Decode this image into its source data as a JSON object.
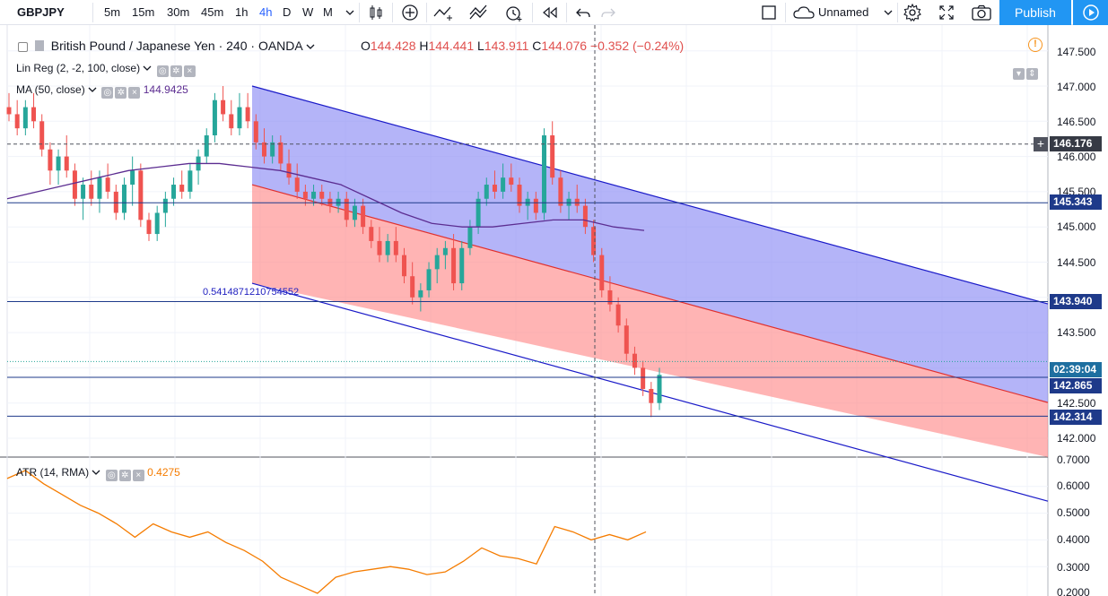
{
  "toolbar": {
    "symbol": "GBPJPY",
    "intervals": [
      "5m",
      "15m",
      "30m",
      "45m",
      "1h",
      "4h",
      "D",
      "W",
      "M"
    ],
    "active_interval": "4h",
    "layout_name": "Unnamed",
    "publish_label": "Publish",
    "icons": [
      "candles-icon",
      "add-icon",
      "indicators-icon",
      "templates-icon",
      "alert-icon",
      "replay-icon",
      "undo-icon",
      "redo-icon",
      "square-icon",
      "cloud-icon",
      "settings-icon",
      "fullscreen-icon",
      "camera-icon",
      "play-icon"
    ]
  },
  "main_legend": {
    "title": "British Pound / Japanese Yen · 240 · OANDA",
    "o_label": "O",
    "o_value": "144.428",
    "h_label": "H",
    "h_value": "144.441",
    "l_label": "L",
    "l_value": "143.911",
    "c_label": "C",
    "c_value": "144.076",
    "change": "−0.352 (−0.24%)"
  },
  "indicators": {
    "linreg": "Lin Reg (2, -2, 100, close)",
    "ma_label": "MA (50, close)",
    "ma_value": "144.9425",
    "atr_label": "ATR (14, RMA)",
    "atr_value": "0.4275"
  },
  "annotation": "0.5414871210754552",
  "price_axis": {
    "labels": [
      "147.500",
      "147.000",
      "146.500",
      "146.000",
      "145.500",
      "145.000",
      "144.500",
      "143.500",
      "142.500",
      "142.000",
      "0.7000"
    ],
    "tags": {
      "crosshair": "146.176",
      "upper_line": "145.343",
      "mid_line": "143.940",
      "countdown": "02:39:04",
      "price": "142.865",
      "low_line": "142.314"
    }
  },
  "atr_axis": {
    "labels": [
      "0.6000",
      "0.5000",
      "0.4000",
      "0.3000",
      "0.2000"
    ]
  },
  "colors": {
    "up": "#26a69a",
    "down": "#ef5350",
    "channel_upper": "#5c5cf5",
    "channel_lower": "#ff6b6b",
    "ma": "#5c2d91",
    "atr": "#f57c00",
    "accent": "#2196f3"
  },
  "chart_data": {
    "type": "candlestick",
    "title": "British Pound / Japanese Yen · 240 · OANDA",
    "ylim": [
      141.7,
      147.8
    ],
    "candles_ohlc": [
      [
        146.7,
        146.9,
        146.5,
        146.6
      ],
      [
        146.6,
        146.8,
        146.3,
        146.4
      ],
      [
        146.4,
        146.8,
        146.3,
        146.7
      ],
      [
        146.7,
        146.9,
        146.4,
        146.5
      ],
      [
        146.5,
        146.6,
        146.0,
        146.1
      ],
      [
        146.1,
        146.2,
        145.6,
        145.8
      ],
      [
        145.8,
        146.1,
        145.6,
        146.0
      ],
      [
        146.0,
        146.3,
        145.7,
        145.8
      ],
      [
        145.8,
        145.9,
        145.3,
        145.4
      ],
      [
        145.4,
        145.7,
        145.1,
        145.6
      ],
      [
        145.6,
        145.8,
        145.3,
        145.4
      ],
      [
        145.4,
        145.8,
        145.2,
        145.7
      ],
      [
        145.7,
        145.9,
        145.4,
        145.5
      ],
      [
        145.5,
        145.6,
        145.1,
        145.2
      ],
      [
        145.2,
        145.7,
        145.1,
        145.6
      ],
      [
        145.6,
        146.0,
        145.3,
        145.8
      ],
      [
        145.8,
        145.9,
        145.0,
        145.1
      ],
      [
        145.1,
        145.2,
        144.8,
        144.9
      ],
      [
        144.9,
        145.3,
        144.8,
        145.2
      ],
      [
        145.2,
        145.5,
        145.0,
        145.4
      ],
      [
        145.4,
        145.7,
        145.3,
        145.6
      ],
      [
        145.6,
        145.8,
        145.4,
        145.5
      ],
      [
        145.5,
        145.9,
        145.4,
        145.8
      ],
      [
        145.8,
        146.1,
        145.6,
        146.0
      ],
      [
        146.0,
        146.4,
        145.9,
        146.3
      ],
      [
        146.3,
        146.9,
        146.2,
        146.8
      ],
      [
        146.8,
        147.0,
        146.5,
        146.6
      ],
      [
        146.6,
        146.8,
        146.3,
        146.4
      ],
      [
        146.4,
        146.9,
        146.3,
        146.7
      ],
      [
        146.7,
        146.9,
        146.4,
        146.5
      ],
      [
        146.5,
        146.6,
        146.1,
        146.2
      ],
      [
        146.2,
        146.4,
        145.9,
        146.0
      ],
      [
        146.0,
        146.3,
        145.9,
        146.2
      ],
      [
        146.2,
        146.3,
        145.8,
        145.9
      ],
      [
        145.9,
        146.1,
        145.6,
        145.7
      ],
      [
        145.7,
        145.9,
        145.4,
        145.5
      ],
      [
        145.5,
        145.6,
        145.3,
        145.4
      ],
      [
        145.4,
        145.6,
        145.3,
        145.5
      ],
      [
        145.5,
        145.6,
        145.3,
        145.4
      ],
      [
        145.4,
        145.5,
        145.2,
        145.3
      ],
      [
        145.3,
        145.5,
        145.2,
        145.4
      ],
      [
        145.4,
        145.5,
        145.0,
        145.1
      ],
      [
        145.1,
        145.4,
        145.0,
        145.3
      ],
      [
        145.3,
        145.4,
        144.9,
        145.0
      ],
      [
        145.0,
        145.1,
        144.7,
        144.8
      ],
      [
        144.8,
        145.0,
        144.5,
        144.6
      ],
      [
        144.6,
        144.9,
        144.5,
        144.8
      ],
      [
        144.8,
        145.0,
        144.5,
        144.6
      ],
      [
        144.6,
        144.7,
        144.2,
        144.3
      ],
      [
        144.3,
        144.5,
        143.9,
        144.0
      ],
      [
        144.0,
        144.2,
        143.8,
        144.1
      ],
      [
        144.1,
        144.5,
        144.0,
        144.4
      ],
      [
        144.4,
        144.7,
        144.2,
        144.6
      ],
      [
        144.6,
        144.8,
        144.4,
        144.7
      ],
      [
        144.7,
        144.9,
        144.1,
        144.2
      ],
      [
        144.2,
        144.8,
        144.1,
        144.7
      ],
      [
        144.7,
        145.1,
        144.6,
        145.0
      ],
      [
        145.0,
        145.5,
        144.9,
        145.4
      ],
      [
        145.4,
        145.7,
        145.3,
        145.6
      ],
      [
        145.6,
        145.8,
        145.4,
        145.5
      ],
      [
        145.5,
        145.9,
        145.4,
        145.7
      ],
      [
        145.7,
        145.9,
        145.5,
        145.6
      ],
      [
        145.6,
        145.7,
        145.2,
        145.3
      ],
      [
        145.3,
        145.5,
        145.1,
        145.4
      ],
      [
        145.4,
        145.5,
        145.1,
        145.2
      ],
      [
        145.2,
        146.4,
        145.1,
        146.3
      ],
      [
        146.3,
        146.5,
        145.6,
        145.7
      ],
      [
        145.7,
        145.8,
        145.2,
        145.3
      ],
      [
        145.3,
        145.5,
        145.1,
        145.4
      ],
      [
        145.4,
        145.6,
        145.2,
        145.3
      ],
      [
        145.3,
        145.4,
        144.9,
        145.0
      ],
      [
        145.0,
        145.1,
        144.5,
        144.6
      ],
      [
        144.6,
        144.7,
        144.0,
        144.1
      ],
      [
        144.1,
        144.3,
        143.8,
        143.9
      ],
      [
        143.9,
        144.0,
        143.5,
        143.6
      ],
      [
        143.6,
        143.7,
        143.1,
        143.2
      ],
      [
        143.2,
        143.3,
        142.9,
        143.0
      ],
      [
        143.0,
        143.1,
        142.6,
        142.7
      ],
      [
        142.7,
        142.8,
        142.3,
        142.5
      ],
      [
        142.5,
        143.0,
        142.4,
        142.9
      ]
    ],
    "ma_series": [
      145.4,
      145.5,
      145.6,
      145.7,
      145.8,
      145.85,
      145.9,
      145.9,
      145.85,
      145.8,
      145.7,
      145.6,
      145.4,
      145.2,
      145.05,
      145.0,
      145.0,
      145.05,
      145.1,
      145.1,
      145.0,
      144.95
    ],
    "atr_series": [
      0.63,
      0.66,
      0.61,
      0.57,
      0.53,
      0.5,
      0.46,
      0.41,
      0.46,
      0.43,
      0.41,
      0.43,
      0.39,
      0.36,
      0.32,
      0.26,
      0.23,
      0.2,
      0.26,
      0.28,
      0.29,
      0.3,
      0.29,
      0.27,
      0.28,
      0.32,
      0.37,
      0.34,
      0.33,
      0.31,
      0.45,
      0.43,
      0.4,
      0.42,
      0.4,
      0.43
    ],
    "atr_ylim": [
      0.2,
      0.7
    ],
    "regression_channel": {
      "start_upper": 147.0,
      "start_mid": 145.6,
      "start_lower": 144.2,
      "slope_per_candle": -0.032
    }
  }
}
